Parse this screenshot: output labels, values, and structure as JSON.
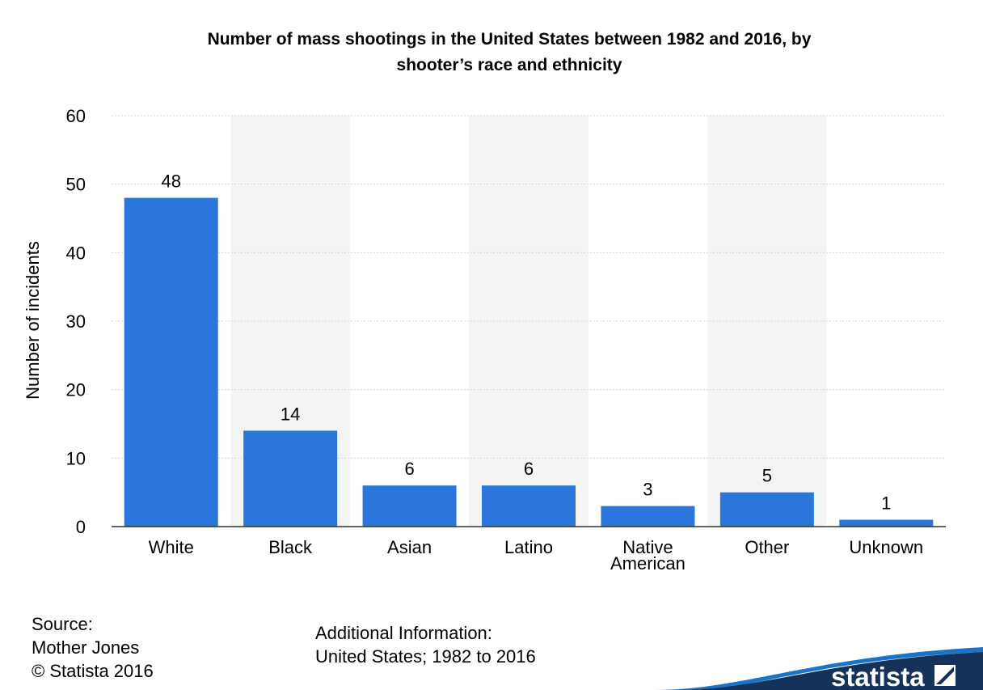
{
  "chart_data": {
    "type": "bar",
    "title_lines": [
      "Number of mass shootings in the United States between 1982 and 2016, by",
      "shooter’s race and ethnicity"
    ],
    "categories": [
      "White",
      "Black",
      "Asian",
      "Latino",
      "Native American",
      "Other",
      "Unknown"
    ],
    "category_lines": [
      [
        "White"
      ],
      [
        "Black"
      ],
      [
        "Asian"
      ],
      [
        "Latino"
      ],
      [
        "Native",
        "American"
      ],
      [
        "Other"
      ],
      [
        "Unknown"
      ]
    ],
    "values": [
      48,
      14,
      6,
      6,
      3,
      5,
      1
    ],
    "data_labels": [
      "48",
      "14",
      "6",
      "6",
      "3",
      "5",
      "1"
    ],
    "ylabel": "Number of incidents",
    "xlabel": "",
    "ylim": [
      0,
      60
    ],
    "yticks": [
      0,
      10,
      20,
      30,
      40,
      50,
      60
    ],
    "grid": true,
    "bar_color": "#2a76db",
    "alt_band_color": "#f4f4f4"
  },
  "footer": {
    "source_label": "Source:",
    "source_name": "Mother Jones",
    "copyright": "© Statista 2016",
    "info_label": "Additional Information:",
    "info_text": "United States; 1982 to 2016"
  },
  "brand": {
    "name": "statista",
    "wave_color": "#14325a",
    "accent_color": "#1a73c7",
    "icon": "statista-logo-icon"
  }
}
